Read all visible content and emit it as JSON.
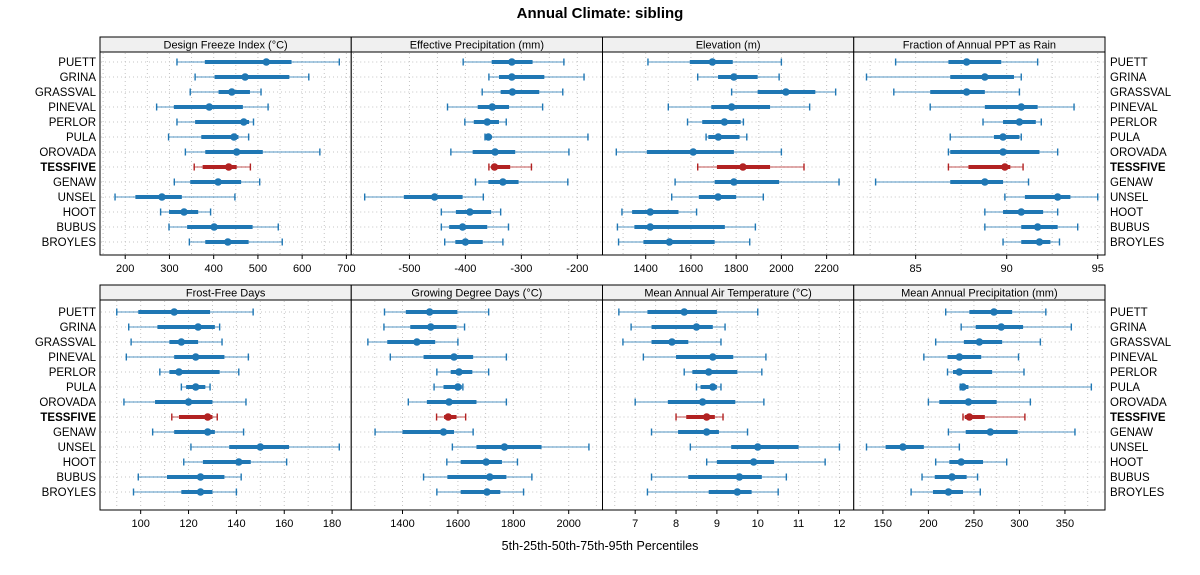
{
  "title": "Annual Climate: sibling",
  "xlabel": "5th-25th-50th-75th-95th Percentiles",
  "percentile_labels": [
    "5th",
    "25th",
    "50th",
    "75th",
    "95th"
  ],
  "sites": [
    "PUETT",
    "GRINA",
    "GRASSVAL",
    "PINEVAL",
    "PERLOR",
    "PULA",
    "OROVADA",
    "TESSFIVE",
    "GENAW",
    "UNSEL",
    "HOOT",
    "BUBUS",
    "BROYLES"
  ],
  "highlight_site": "TESSFIVE",
  "colors": {
    "normal": "#1f77b4",
    "highlight": "#b22222",
    "grid": "#c4c4c4",
    "strip_bg": "#f0f0f0",
    "border": "#000000",
    "background": "#ffffff"
  },
  "chart_data": [
    {
      "type": "percentile-dotplot",
      "title": "Design Freeze Index (°C)",
      "row": 0,
      "col": 0,
      "xlim": [
        143,
        711
      ],
      "xticks": [
        200,
        300,
        400,
        500,
        600,
        700
      ],
      "series": {
        "PUETT": [
          317,
          380,
          519,
          576,
          684
        ],
        "GRINA": [
          358,
          402,
          471,
          571,
          615
        ],
        "GRASSVAL": [
          347,
          411,
          441,
          482,
          507
        ],
        "PINEVAL": [
          271,
          310,
          390,
          466,
          523
        ],
        "PERLOR": [
          317,
          358,
          468,
          480,
          490
        ],
        "PULA": [
          298,
          372,
          446,
          456,
          479
        ],
        "OROVADA": [
          336,
          381,
          452,
          511,
          640
        ],
        "TESSFIVE": [
          356,
          375,
          434,
          452,
          483
        ],
        "GENAW": [
          311,
          347,
          410,
          462,
          504
        ],
        "UNSEL": [
          177,
          223,
          283,
          328,
          448
        ],
        "HOOT": [
          280,
          299,
          333,
          365,
          393
        ],
        "BUBUS": [
          299,
          340,
          401,
          488,
          546
        ],
        "BROYLES": [
          345,
          381,
          432,
          479,
          555
        ]
      }
    },
    {
      "type": "percentile-dotplot",
      "title": "Effective Precipitation (mm)",
      "row": 0,
      "col": 1,
      "xlim": [
        -604,
        -155
      ],
      "xticks": [
        -500,
        -400,
        -300,
        -200
      ],
      "series": {
        "PUETT": [
          -404,
          -353,
          -317,
          -280,
          -224
        ],
        "GRINA": [
          -358,
          -340,
          -317,
          -259,
          -188
        ],
        "GRASSVAL": [
          -370,
          -337,
          -316,
          -268,
          -226
        ],
        "PINEVAL": [
          -432,
          -378,
          -352,
          -322,
          -262
        ],
        "PERLOR": [
          -401,
          -385,
          -361,
          -340,
          -327
        ],
        "PULA": [
          -365,
          -362,
          -359,
          -353,
          -181
        ],
        "OROVADA": [
          -426,
          -387,
          -347,
          -311,
          -215
        ],
        "TESSFIVE": [
          -358,
          -353,
          -348,
          -320,
          -282
        ],
        "GENAW": [
          -382,
          -359,
          -333,
          -305,
          -217
        ],
        "UNSEL": [
          -580,
          -510,
          -455,
          -405,
          -368
        ],
        "HOOT": [
          -443,
          -417,
          -392,
          -354,
          -337
        ],
        "BUBUS": [
          -443,
          -429,
          -405,
          -361,
          -323
        ],
        "BROYLES": [
          -437,
          -418,
          -400,
          -369,
          -333
        ]
      }
    },
    {
      "type": "percentile-dotplot",
      "title": "Elevation (m)",
      "row": 0,
      "col": 2,
      "xlim": [
        1209,
        2320
      ],
      "xticks": [
        1400,
        1600,
        1800,
        2000,
        2200
      ],
      "series": {
        "PUETT": [
          1410,
          1595,
          1695,
          1785,
          2000
        ],
        "GRINA": [
          1630,
          1720,
          1790,
          1895,
          1990
        ],
        "GRASSVAL": [
          1780,
          1895,
          2020,
          2150,
          2240
        ],
        "PINEVAL": [
          1500,
          1690,
          1780,
          1950,
          2125
        ],
        "PERLOR": [
          1585,
          1650,
          1748,
          1820,
          1832
        ],
        "PULA": [
          1667,
          1677,
          1721,
          1815,
          1847
        ],
        "OROVADA": [
          1270,
          1405,
          1610,
          1790,
          2000
        ],
        "TESSFIVE": [
          1630,
          1715,
          1830,
          1950,
          2100
        ],
        "GENAW": [
          1530,
          1705,
          1790,
          1990,
          2255
        ],
        "UNSEL": [
          1515,
          1635,
          1720,
          1800,
          1920
        ],
        "HOOT": [
          1295,
          1340,
          1420,
          1545,
          1625
        ],
        "BUBUS": [
          1275,
          1350,
          1420,
          1750,
          1885
        ],
        "BROYLES": [
          1280,
          1390,
          1505,
          1705,
          1860
        ]
      }
    },
    {
      "type": "percentile-dotplot",
      "title": "Fraction of Annual PPT as Rain",
      "row": 0,
      "col": 3,
      "xlim": [
        81.6,
        95.4
      ],
      "xticks": [
        85,
        90,
        95
      ],
      "series": {
        "PUETT": [
          83.9,
          86.8,
          87.8,
          89.7,
          91.7
        ],
        "GRINA": [
          82.3,
          86.9,
          88.8,
          90.4,
          90.8
        ],
        "GRASSVAL": [
          83.8,
          85.8,
          87.8,
          88.8,
          90.7
        ],
        "PINEVAL": [
          85.8,
          88.8,
          90.8,
          91.7,
          93.7
        ],
        "PERLOR": [
          88.7,
          89.8,
          90.7,
          91.6,
          91.9
        ],
        "PULA": [
          86.9,
          89.3,
          89.8,
          90.7,
          90.8
        ],
        "OROVADA": [
          86.8,
          86.9,
          89.8,
          91.8,
          92.8
        ],
        "TESSFIVE": [
          86.8,
          87.9,
          89.9,
          90.2,
          90.9
        ],
        "GENAW": [
          82.8,
          86.9,
          88.8,
          89.8,
          91.2
        ],
        "UNSEL": [
          89.9,
          91.0,
          92.8,
          93.5,
          95.0
        ],
        "HOOT": [
          88.8,
          89.8,
          90.8,
          92.0,
          92.8
        ],
        "BUBUS": [
          88.8,
          90.8,
          91.7,
          92.8,
          93.9
        ],
        "BROYLES": [
          89.8,
          90.8,
          91.8,
          92.4,
          92.9
        ]
      }
    },
    {
      "type": "percentile-dotplot",
      "title": "Frost-Free Days",
      "row": 1,
      "col": 0,
      "xlim": [
        83,
        188
      ],
      "xticks": [
        100,
        120,
        140,
        160,
        180
      ],
      "series": {
        "PUETT": [
          90,
          99,
          114,
          129,
          147
        ],
        "GRINA": [
          95,
          107,
          124,
          131,
          133
        ],
        "GRASSVAL": [
          96,
          112,
          117,
          124,
          134
        ],
        "PINEVAL": [
          94,
          114,
          123,
          135,
          145
        ],
        "PERLOR": [
          108,
          112,
          116,
          133,
          141
        ],
        "PULA": [
          117,
          119,
          123,
          127,
          129
        ],
        "OROVADA": [
          93,
          106,
          120,
          130,
          144
        ],
        "TESSFIVE": [
          113,
          116,
          128,
          130,
          132
        ],
        "GENAW": [
          105,
          114,
          128,
          131,
          143
        ],
        "UNSEL": [
          121,
          137,
          150,
          162,
          183
        ],
        "HOOT": [
          118,
          126,
          141,
          146,
          161
        ],
        "BUBUS": [
          99,
          111,
          125,
          135,
          142
        ],
        "BROYLES": [
          97,
          117,
          125,
          130,
          140
        ]
      }
    },
    {
      "type": "percentile-dotplot",
      "title": "Growing Degree Days (°C)",
      "row": 1,
      "col": 1,
      "xlim": [
        1215,
        2122
      ],
      "xticks": [
        1400,
        1600,
        1800,
        2000
      ],
      "series": {
        "PUETT": [
          1335,
          1412,
          1498,
          1598,
          1711
        ],
        "GRINA": [
          1333,
          1428,
          1502,
          1595,
          1624
        ],
        "GRASSVAL": [
          1275,
          1345,
          1452,
          1518,
          1600
        ],
        "PINEVAL": [
          1356,
          1476,
          1586,
          1655,
          1775
        ],
        "PERLOR": [
          1524,
          1574,
          1604,
          1652,
          1711
        ],
        "PULA": [
          1514,
          1548,
          1600,
          1614,
          1618
        ],
        "OROVADA": [
          1421,
          1488,
          1568,
          1667,
          1775
        ],
        "TESSFIVE": [
          1523,
          1550,
          1565,
          1595,
          1628
        ],
        "GENAW": [
          1301,
          1400,
          1548,
          1586,
          1655
        ],
        "UNSEL": [
          1580,
          1667,
          1768,
          1902,
          2073
        ],
        "HOOT": [
          1560,
          1610,
          1702,
          1759,
          1815
        ],
        "BUBUS": [
          1476,
          1562,
          1715,
          1775,
          1867
        ],
        "BROYLES": [
          1524,
          1610,
          1705,
          1753,
          1837
        ]
      }
    },
    {
      "type": "percentile-dotplot",
      "title": "Mean Annual Air Temperature (°C)",
      "row": 1,
      "col": 2,
      "xlim": [
        6.2,
        12.35
      ],
      "xticks": [
        7,
        8,
        9,
        10,
        11,
        12
      ],
      "series": {
        "PUETT": [
          6.6,
          7.3,
          8.2,
          9.0,
          10.0
        ],
        "GRINA": [
          6.9,
          7.4,
          8.5,
          8.9,
          9.2
        ],
        "GRASSVAL": [
          6.7,
          7.4,
          7.9,
          8.3,
          9.1
        ],
        "PINEVAL": [
          7.2,
          8.0,
          8.9,
          9.4,
          10.2
        ],
        "PERLOR": [
          8.2,
          8.4,
          8.8,
          9.5,
          10.1
        ],
        "PULA": [
          8.5,
          8.6,
          8.9,
          9.0,
          9.1
        ],
        "OROVADA": [
          7.0,
          7.8,
          8.65,
          9.45,
          10.15
        ],
        "TESSFIVE": [
          8.0,
          8.25,
          8.75,
          8.95,
          9.15
        ],
        "GENAW": [
          7.4,
          8.05,
          8.75,
          9.05,
          9.75
        ],
        "UNSEL": [
          8.35,
          9.35,
          10.0,
          11.0,
          12.0
        ],
        "HOOT": [
          8.75,
          9.0,
          9.9,
          10.4,
          11.65
        ],
        "BUBUS": [
          7.4,
          8.3,
          9.55,
          10.1,
          10.7
        ],
        "BROYLES": [
          7.3,
          8.8,
          9.5,
          9.85,
          10.5
        ]
      }
    },
    {
      "type": "percentile-dotplot",
      "title": "Mean Annual Precipitation (mm)",
      "row": 1,
      "col": 3,
      "xlim": [
        118,
        394
      ],
      "xticks": [
        150,
        200,
        250,
        300,
        350
      ],
      "series": {
        "PUETT": [
          219,
          245,
          272,
          292,
          329
        ],
        "GRINA": [
          236,
          252,
          280,
          304,
          357
        ],
        "GRASSVAL": [
          208,
          239,
          256,
          281,
          323
        ],
        "PINEVAL": [
          195,
          221,
          234,
          258,
          299
        ],
        "PERLOR": [
          221,
          227,
          234,
          270,
          305
        ],
        "PULA": [
          235,
          236,
          238,
          244,
          379
        ],
        "OROVADA": [
          200,
          212,
          244,
          275,
          312
        ],
        "TESSFIVE": [
          238,
          240,
          245,
          262,
          306
        ],
        "GENAW": [
          222,
          241,
          268,
          298,
          361
        ],
        "UNSEL": [
          132,
          153,
          172,
          195,
          234
        ],
        "HOOT": [
          208,
          223,
          236,
          260,
          286
        ],
        "BUBUS": [
          193,
          207,
          226,
          242,
          254
        ],
        "BROYLES": [
          181,
          205,
          222,
          238,
          257
        ]
      }
    }
  ]
}
